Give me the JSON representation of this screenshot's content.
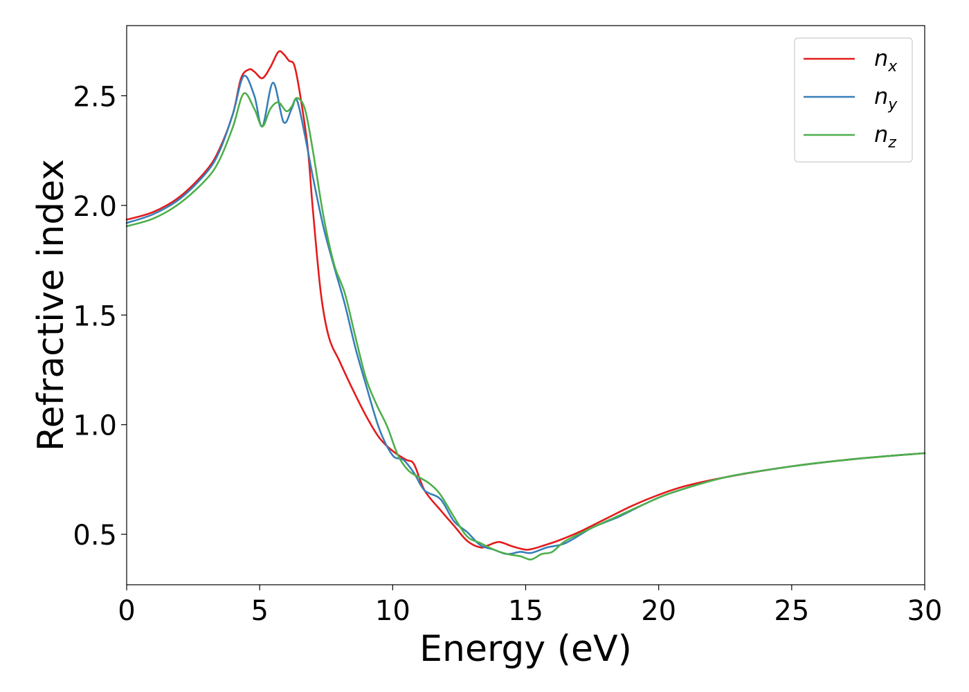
{
  "chart_data": {
    "type": "line",
    "xlabel": "Energy (eV)",
    "ylabel": "Refractive index",
    "xlim": [
      0,
      30
    ],
    "ylim": [
      0.27,
      2.82
    ],
    "xticks": [
      0,
      5,
      10,
      15,
      20,
      25,
      30
    ],
    "xtick_labels": [
      "0",
      "5",
      "10",
      "15",
      "20",
      "25",
      "30"
    ],
    "yticks": [
      0.5,
      1.0,
      1.5,
      2.0,
      2.5
    ],
    "ytick_labels": [
      "0.5",
      "1.0",
      "1.5",
      "2.0",
      "2.5"
    ],
    "grid": false,
    "legend_position": "top-right",
    "series": [
      {
        "name": "n_x",
        "label_main": "n",
        "label_sub": "x",
        "color": "#e41a1c",
        "x": [
          0,
          1,
          2,
          3,
          3.5,
          4,
          4.3,
          4.6,
          4.8,
          5.1,
          5.4,
          5.7,
          5.9,
          6.1,
          6.3,
          6.5,
          6.8,
          7.0,
          7.3,
          7.6,
          8.0,
          8.5,
          9.0,
          9.5,
          10.0,
          10.5,
          10.8,
          11.2,
          11.8,
          12.3,
          12.8,
          13.3,
          13.6,
          14.0,
          14.5,
          15.0,
          15.3,
          15.7,
          16.2,
          17.0,
          18.0,
          19.0,
          20.0,
          21.0,
          22.5,
          25.0,
          27.5,
          30.0
        ],
        "values": [
          1.935,
          1.97,
          2.04,
          2.16,
          2.26,
          2.42,
          2.58,
          2.62,
          2.61,
          2.58,
          2.63,
          2.7,
          2.69,
          2.66,
          2.64,
          2.52,
          2.27,
          1.98,
          1.6,
          1.4,
          1.29,
          1.16,
          1.04,
          0.94,
          0.88,
          0.84,
          0.82,
          0.7,
          0.61,
          0.54,
          0.47,
          0.44,
          0.45,
          0.465,
          0.445,
          0.43,
          0.435,
          0.45,
          0.47,
          0.51,
          0.57,
          0.63,
          0.68,
          0.72,
          0.76,
          0.81,
          0.845,
          0.87
        ]
      },
      {
        "name": "n_y",
        "label_main": "n",
        "label_sub": "y",
        "color": "#377eb8",
        "x": [
          0,
          1,
          2,
          3,
          3.5,
          4,
          4.4,
          4.8,
          5.1,
          5.5,
          5.9,
          6.2,
          6.4,
          6.7,
          7.0,
          7.4,
          7.8,
          8.2,
          8.6,
          9.0,
          9.5,
          10.0,
          10.4,
          10.8,
          11.2,
          11.8,
          12.3,
          12.8,
          13.3,
          13.8,
          14.3,
          14.8,
          15.2,
          15.8,
          16.5,
          17.5,
          18.5,
          19.5,
          20.5,
          22.5,
          25.0,
          27.5,
          30.0
        ],
        "values": [
          1.92,
          1.96,
          2.03,
          2.15,
          2.25,
          2.42,
          2.59,
          2.5,
          2.36,
          2.56,
          2.38,
          2.44,
          2.48,
          2.32,
          2.13,
          1.9,
          1.72,
          1.55,
          1.35,
          1.18,
          0.98,
          0.86,
          0.84,
          0.78,
          0.7,
          0.66,
          0.56,
          0.51,
          0.45,
          0.43,
          0.41,
          0.42,
          0.415,
          0.44,
          0.46,
          0.53,
          0.58,
          0.64,
          0.69,
          0.76,
          0.81,
          0.845,
          0.87
        ]
      },
      {
        "name": "n_z",
        "label_main": "n",
        "label_sub": "z",
        "color": "#4daf4a",
        "x": [
          0,
          1,
          2,
          3,
          3.5,
          4,
          4.4,
          4.8,
          5.1,
          5.4,
          5.7,
          6.0,
          6.2,
          6.4,
          6.7,
          7.0,
          7.4,
          7.8,
          8.2,
          8.6,
          9.0,
          9.4,
          9.8,
          10.2,
          10.6,
          11.0,
          11.4,
          11.8,
          12.3,
          12.8,
          13.3,
          13.8,
          14.3,
          14.8,
          15.2,
          15.6,
          16.0,
          16.5,
          17.5,
          18.5,
          19.5,
          20.5,
          22.5,
          25.0,
          27.5,
          30.0
        ],
        "values": [
          1.905,
          1.94,
          2.01,
          2.12,
          2.21,
          2.36,
          2.51,
          2.44,
          2.36,
          2.44,
          2.47,
          2.43,
          2.45,
          2.49,
          2.44,
          2.25,
          1.95,
          1.73,
          1.6,
          1.4,
          1.21,
          1.09,
          0.99,
          0.86,
          0.79,
          0.76,
          0.73,
          0.68,
          0.58,
          0.49,
          0.46,
          0.43,
          0.41,
          0.4,
          0.385,
          0.41,
          0.42,
          0.47,
          0.53,
          0.585,
          0.64,
          0.69,
          0.76,
          0.81,
          0.845,
          0.87
        ]
      }
    ]
  }
}
